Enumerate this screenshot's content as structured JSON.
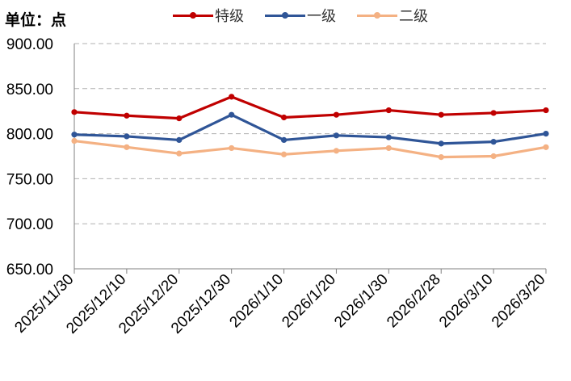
{
  "unit_label": "单位：点",
  "chart_data": {
    "type": "line",
    "title": "",
    "xlabel": "",
    "ylabel": "单位：点",
    "categories": [
      "2025/11/30",
      "2025/12/10",
      "2025/12/20",
      "2025/12/30",
      "2026/1/10",
      "2026/1/20",
      "2026/1/30",
      "2026/2/28",
      "2026/3/10",
      "2026/3/20"
    ],
    "ylim": [
      650,
      900
    ],
    "yticks": [
      650,
      700,
      750,
      800,
      850,
      900
    ],
    "ytick_labels": [
      "650.00",
      "700.00",
      "750.00",
      "800.00",
      "850.00",
      "900.00"
    ],
    "grid": true,
    "legend_position": "top",
    "series": [
      {
        "name": "特级",
        "color": "#c00000",
        "values": [
          824,
          820,
          817,
          841,
          818,
          821,
          826,
          821,
          823,
          826
        ]
      },
      {
        "name": "一级",
        "color": "#2f5597",
        "values": [
          799,
          797,
          793,
          821,
          793,
          798,
          796,
          789,
          791,
          800
        ]
      },
      {
        "name": "二级",
        "color": "#f4b183",
        "values": [
          792,
          785,
          778,
          784,
          777,
          781,
          784,
          774,
          775,
          785
        ]
      }
    ]
  }
}
